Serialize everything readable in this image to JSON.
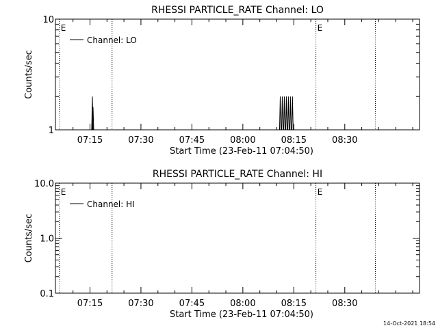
{
  "timestamp": "14-Oct-2021 18:54",
  "chart_data": [
    {
      "type": "line",
      "title": "RHESSI PARTICLE_RATE Channel: LO",
      "xlabel": "Start Time (23-Feb-11 07:04:50)",
      "ylabel": "Counts/sec",
      "yscale": "log",
      "ylim": [
        1,
        10
      ],
      "y_tick_labels": [
        "1",
        "10"
      ],
      "x_tick_labels": [
        "07:15",
        "07:30",
        "07:45",
        "08:00",
        "08:15",
        "08:30"
      ],
      "x_tick_minutes": [
        435,
        450,
        465,
        480,
        495,
        510
      ],
      "xlim_minutes": [
        424.83,
        532
      ],
      "legend": {
        "label": "Channel: LO",
        "position": "top-left"
      },
      "event_lines": [
        {
          "minute": 426,
          "label": "E"
        },
        {
          "minute": 441.5,
          "label": ""
        },
        {
          "minute": 501.5,
          "label": "E"
        },
        {
          "minute": 519,
          "label": ""
        }
      ],
      "spikes": [
        {
          "minute": 435.7,
          "value": 2
        },
        {
          "minute": 435.9,
          "value": 1.6
        },
        {
          "minute": 491.0,
          "value": 2
        },
        {
          "minute": 491.6,
          "value": 2
        },
        {
          "minute": 492.2,
          "value": 2
        },
        {
          "minute": 492.8,
          "value": 2
        },
        {
          "minute": 493.4,
          "value": 2
        },
        {
          "minute": 494.0,
          "value": 2
        },
        {
          "minute": 494.6,
          "value": 2
        }
      ]
    },
    {
      "type": "line",
      "title": "RHESSI PARTICLE_RATE Channel: HI",
      "xlabel": "Start Time (23-Feb-11 07:04:50)",
      "ylabel": "Counts/sec",
      "yscale": "log",
      "ylim": [
        0.1,
        10
      ],
      "y_tick_labels": [
        "0.1",
        "1.0",
        "10.0"
      ],
      "x_tick_labels": [
        "07:15",
        "07:30",
        "07:45",
        "08:00",
        "08:15",
        "08:30"
      ],
      "x_tick_minutes": [
        435,
        450,
        465,
        480,
        495,
        510
      ],
      "xlim_minutes": [
        424.83,
        532
      ],
      "legend": {
        "label": "Channel: HI",
        "position": "top-left"
      },
      "event_lines": [
        {
          "minute": 426,
          "label": "E"
        },
        {
          "minute": 441.5,
          "label": ""
        },
        {
          "minute": 501.5,
          "label": "E"
        },
        {
          "minute": 519,
          "label": ""
        }
      ],
      "spikes": []
    }
  ]
}
